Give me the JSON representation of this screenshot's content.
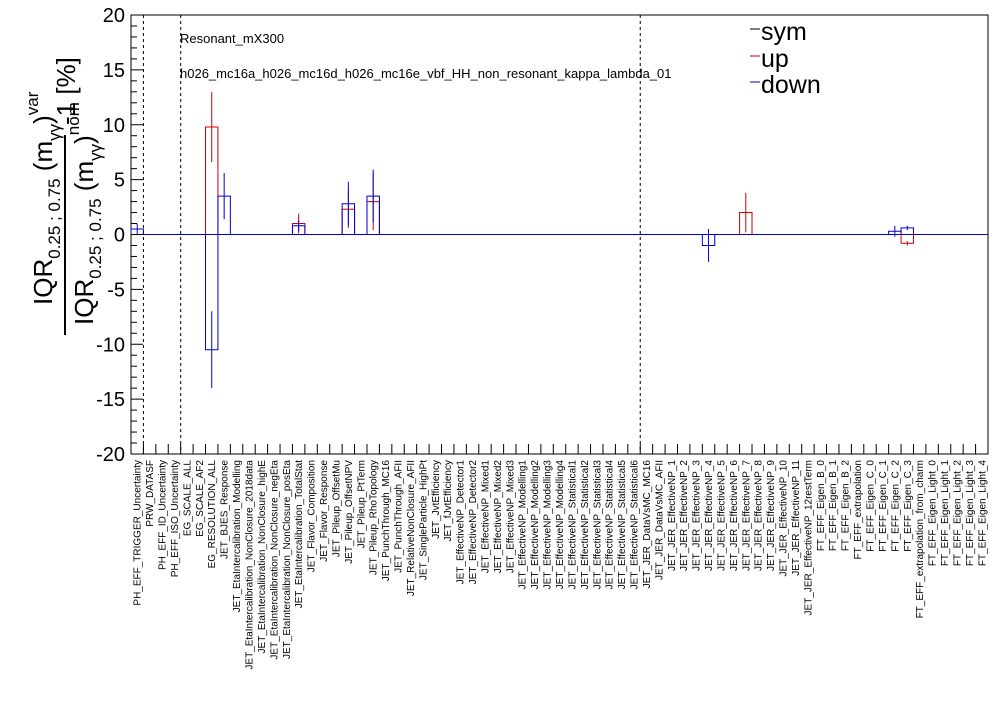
{
  "chart_data": {
    "type": "systematics-histogram",
    "sample_label": "Resonant_mX300",
    "process_label": "h026_mc16a_h026_mc16d_h026_mc16e_vbf_HH_non_resonant_kappa_lambda_01",
    "ylabel_numerator": "IQR",
    "ylabel_sub": "0.25 ; 0.75",
    "ylabel_var": "m",
    "ylabel_var_sub": "γγ",
    "ylabel_sup_num": "var",
    "ylabel_sup_den": "nom",
    "ylabel_suffix": "-1 [%]",
    "ylim": [
      -20,
      20
    ],
    "yticks": [
      -20,
      -15,
      -10,
      -5,
      0,
      5,
      10,
      15,
      20
    ],
    "legend": [
      {
        "label": "sym",
        "color": "#000000"
      },
      {
        "label": "up",
        "color": "#cc0000"
      },
      {
        "label": "down",
        "color": "#0000cc"
      }
    ],
    "separators_after_index": [
      0,
      3,
      40
    ],
    "categories": [
      "PH_EFF_TRIGGER_Uncertainty",
      "PRW_DATASF",
      "PH_EFF_ID_Uncertainty",
      "PH_EFF_ISO_Uncertainty",
      "EG_SCALE_ALL",
      "EG_SCALE_AF2",
      "EG_RESOLUTION_ALL",
      "JET_BJES_Response",
      "JET_EtaIntercalibration_Modelling",
      "JET_EtaIntercalibration_NonClosure_2018data",
      "JET_EtaIntercalibration_NonClosure_highE",
      "JET_EtaIntercalibration_NonClosure_negEta",
      "JET_EtaIntercalibration_NonClosure_posEta",
      "JET_EtaIntercalibration_TotalStat",
      "JET_Flavor_Composition",
      "JET_Flavor_Response",
      "JET_Pileup_OffsetMu",
      "JET_Pileup_OffsetNPV",
      "JET_Pileup_PtTerm",
      "JET_Pileup_RhoTopology",
      "JET_PunchThrough_MC16",
      "JET_PunchThrough_AFII",
      "JET_RelativeNonClosure_AFII",
      "JET_SingleParticle_HighPt",
      "JET_JvtEfficiency",
      "JET_fJvtEfficiency",
      "JET_EffectiveNP_Detector1",
      "JET_EffectiveNP_Detector2",
      "JET_EffectiveNP_Mixed1",
      "JET_EffectiveNP_Mixed2",
      "JET_EffectiveNP_Mixed3",
      "JET_EffectiveNP_Modelling1",
      "JET_EffectiveNP_Modelling2",
      "JET_EffectiveNP_Modelling3",
      "JET_EffectiveNP_Modelling4",
      "JET_EffectiveNP_Statistical1",
      "JET_EffectiveNP_Statistical2",
      "JET_EffectiveNP_Statistical3",
      "JET_EffectiveNP_Statistical4",
      "JET_EffectiveNP_Statistical5",
      "JET_EffectiveNP_Statistical6",
      "JET_JER_DataVsMC_MC16",
      "JET_JER_DataVsMC_AFII",
      "JET_JER_EffectiveNP_1",
      "JET_JER_EffectiveNP_2",
      "JET_JER_EffectiveNP_3",
      "JET_JER_EffectiveNP_4",
      "JET_JER_EffectiveNP_5",
      "JET_JER_EffectiveNP_6",
      "JET_JER_EffectiveNP_7",
      "JET_JER_EffectiveNP_8",
      "JET_JER_EffectiveNP_9",
      "JET_JER_EffectiveNP_10",
      "JET_JER_EffectiveNP_11",
      "JET_JER_EffectiveNP_12restTerm",
      "FT_EFF_Eigen_B_0",
      "FT_EFF_Eigen_B_1",
      "FT_EFF_Eigen_B_2",
      "FT_EFF_extrapolation",
      "FT_EFF_Eigen_C_0",
      "FT_EFF_Eigen_C_1",
      "FT_EFF_Eigen_C_2",
      "FT_EFF_Eigen_C_3",
      "FT_EFF_extrapolation_from_charm",
      "FT_EFF_Eigen_Light_0",
      "FT_EFF_Eigen_Light_1",
      "FT_EFF_Eigen_Light_2",
      "FT_EFF_Eigen_Light_3",
      "FT_EFF_Eigen_Light_4"
    ],
    "series": [
      {
        "name": "sym",
        "color": "#000000",
        "points": []
      },
      {
        "name": "up",
        "color": "#cc0000",
        "points": [
          {
            "index": 6,
            "value": 9.8,
            "err": 3.2
          },
          {
            "index": 13,
            "value": 1.0,
            "err": 0.9
          },
          {
            "index": 17,
            "value": 2.3,
            "err": 1.7
          },
          {
            "index": 19,
            "value": 3.0,
            "err": 2.6
          },
          {
            "index": 49,
            "value": 2.0,
            "err": 1.8
          },
          {
            "index": 62,
            "value": -0.8,
            "err": 0.2
          }
        ]
      },
      {
        "name": "down",
        "color": "#0000cc",
        "points": [
          {
            "index": 0,
            "value": 0.5,
            "err": 0.5
          },
          {
            "index": 6,
            "value": -10.5,
            "err": 3.5
          },
          {
            "index": 7,
            "value": 3.5,
            "err": 2.1
          },
          {
            "index": 13,
            "value": 0.8,
            "err": 0.5
          },
          {
            "index": 17,
            "value": 2.8,
            "err": 2.0
          },
          {
            "index": 19,
            "value": 3.5,
            "err": 2.4
          },
          {
            "index": 46,
            "value": -1.0,
            "err": 1.5
          },
          {
            "index": 61,
            "value": 0.3,
            "err": 0.5
          },
          {
            "index": 62,
            "value": 0.6,
            "err": 0.2
          }
        ]
      }
    ]
  }
}
